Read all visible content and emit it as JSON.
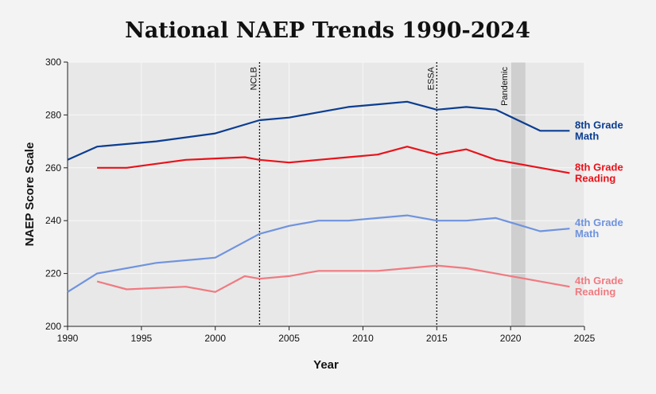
{
  "chart_data": {
    "type": "line",
    "title": "National NAEP Trends 1990-2024",
    "xlabel": "Year",
    "ylabel": "NAEP Score Scale",
    "xlim": [
      1990,
      2025
    ],
    "ylim": [
      200,
      300
    ],
    "xticks": [
      "1990",
      "1995",
      "2000",
      "2005",
      "2010",
      "2015",
      "2020",
      "2025"
    ],
    "yticks": [
      "200",
      "220",
      "240",
      "260",
      "280",
      "300"
    ],
    "grid": true,
    "events": [
      {
        "label": "NCLB",
        "x": 2003
      },
      {
        "label": "ESSA",
        "x": 2015
      }
    ],
    "shaded_periods": [
      {
        "label": "Pandemic",
        "start": 2020,
        "end": 2021
      }
    ],
    "series": [
      {
        "name": "8th Grade Math",
        "label_lines": [
          "8th Grade",
          "Math"
        ],
        "color": "#0b3d91",
        "x": [
          1990,
          1992,
          1996,
          2000,
          2003,
          2005,
          2007,
          2009,
          2011,
          2013,
          2015,
          2017,
          2019,
          2022,
          2024
        ],
        "y": [
          263,
          268,
          270,
          273,
          278,
          279,
          281,
          283,
          284,
          285,
          282,
          283,
          282,
          274,
          274
        ]
      },
      {
        "name": "8th Grade Reading",
        "label_lines": [
          "8th Grade",
          "Reading"
        ],
        "color": "#e8131b",
        "x": [
          1992,
          1994,
          1998,
          2002,
          2003,
          2005,
          2007,
          2009,
          2011,
          2013,
          2015,
          2017,
          2019,
          2022,
          2024
        ],
        "y": [
          260,
          260,
          263,
          264,
          263,
          262,
          263,
          264,
          265,
          268,
          265,
          267,
          263,
          260,
          258
        ]
      },
      {
        "name": "4th Grade Math",
        "label_lines": [
          "4th Grade",
          "Math"
        ],
        "color": "#6f93de",
        "x": [
          1990,
          1992,
          1996,
          2000,
          2003,
          2005,
          2007,
          2009,
          2011,
          2013,
          2015,
          2017,
          2019,
          2022,
          2024
        ],
        "y": [
          213,
          220,
          224,
          226,
          235,
          238,
          240,
          240,
          241,
          242,
          240,
          240,
          241,
          236,
          237
        ]
      },
      {
        "name": "4th Grade Reading",
        "label_lines": [
          "4th Grade",
          "Reading"
        ],
        "color": "#f07a80",
        "x": [
          1992,
          1994,
          1998,
          2000,
          2002,
          2003,
          2005,
          2007,
          2009,
          2011,
          2013,
          2015,
          2017,
          2019,
          2022,
          2024
        ],
        "y": [
          217,
          214,
          215,
          213,
          219,
          218,
          219,
          221,
          221,
          221,
          222,
          223,
          222,
          220,
          217,
          215
        ]
      }
    ]
  }
}
